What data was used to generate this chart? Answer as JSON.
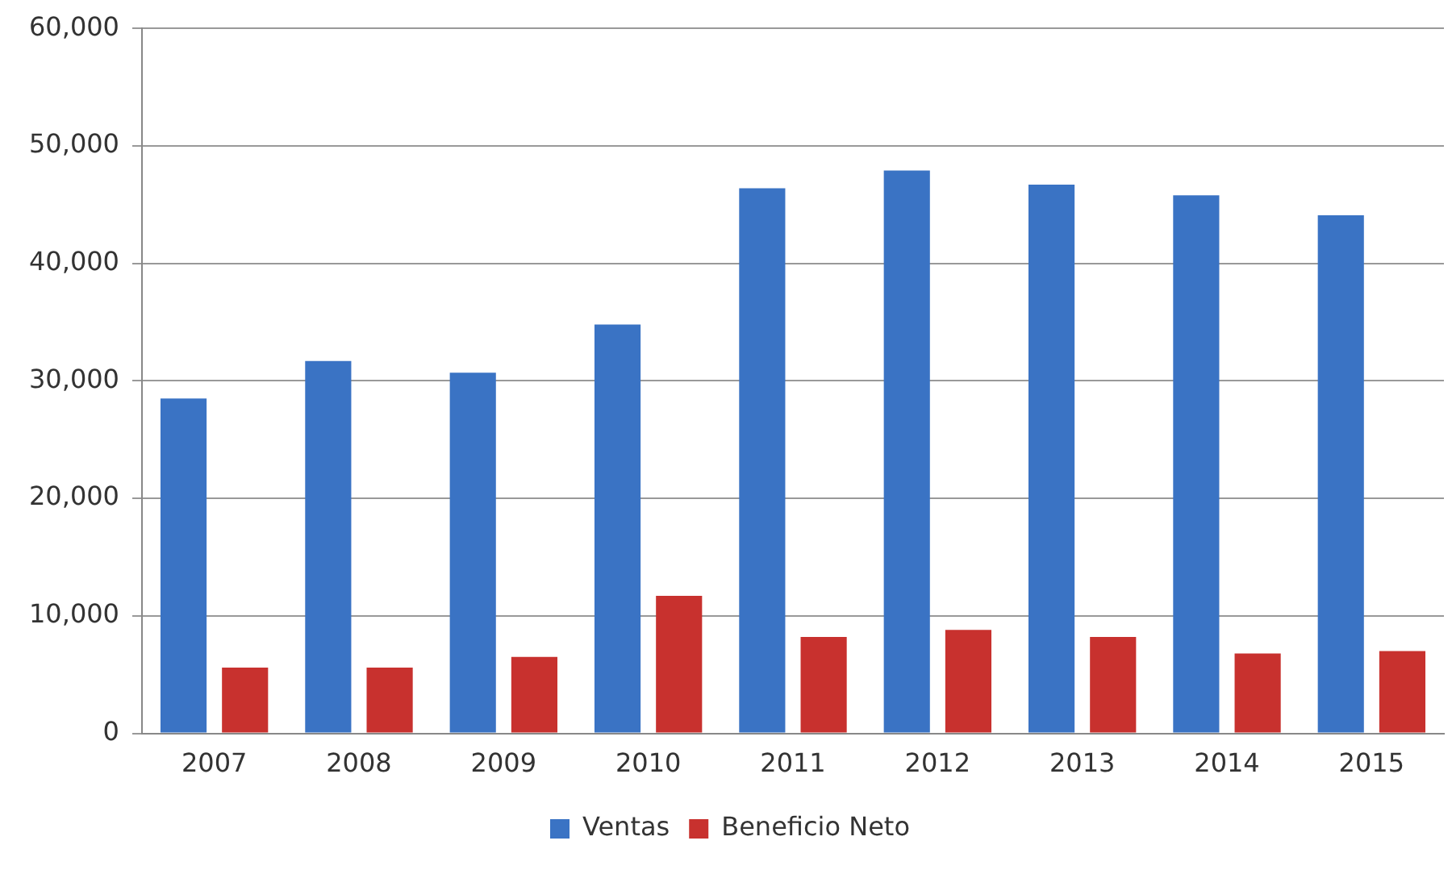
{
  "chart_data": {
    "type": "bar",
    "categories": [
      "2007",
      "2008",
      "2009",
      "2010",
      "2011",
      "2012",
      "2013",
      "2014",
      "2015"
    ],
    "series": [
      {
        "name": "Ventas",
        "color": "#3a73c4",
        "values": [
          28500,
          31700,
          30700,
          34800,
          46400,
          47900,
          46700,
          45800,
          44100
        ]
      },
      {
        "name": "Beneficio Neto",
        "color": "#c8312e",
        "values": [
          5600,
          5600,
          6500,
          11700,
          8200,
          8800,
          8200,
          6800,
          7000
        ]
      }
    ],
    "ylim": [
      0,
      60000
    ],
    "yticks": [
      {
        "value": 0,
        "label": "0"
      },
      {
        "value": 10000,
        "label": "10,000"
      },
      {
        "value": 20000,
        "label": "20,000"
      },
      {
        "value": 30000,
        "label": "30,000"
      },
      {
        "value": 40000,
        "label": "40,000"
      },
      {
        "value": 50000,
        "label": "50,000"
      },
      {
        "value": 60000,
        "label": "60,000"
      }
    ],
    "grid": "y",
    "legend": "bottom"
  }
}
